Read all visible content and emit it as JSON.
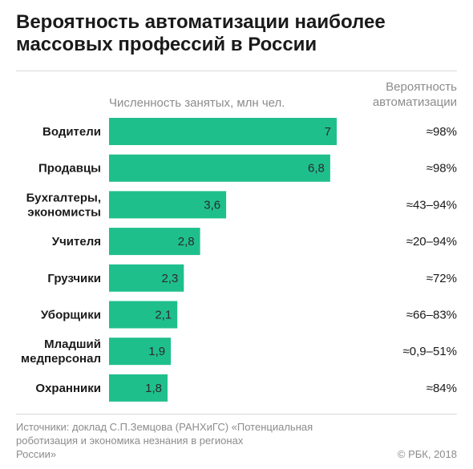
{
  "title": {
    "line1": "Вероятность автоматизации наиболее",
    "line2": "массовых профессий в России"
  },
  "headers": {
    "employed": "Численность занятых, млн чел.",
    "probability_line1": "Вероятность",
    "probability_line2": "автоматизации"
  },
  "source": {
    "line1": "Источники: доклад С.П.Земцова (РАНХиГС) «Потенциальная",
    "line2": "роботизация и экономика незнания в регионах",
    "line3": "России»"
  },
  "copyright": "© РБК, 2018",
  "colors": {
    "bar": "#1fbf8c",
    "label": "#1a1a1a",
    "value": "#2b2b2b"
  },
  "chart_data": {
    "type": "bar",
    "orientation": "horizontal",
    "categories": [
      [
        "Водители"
      ],
      [
        "Продавцы"
      ],
      [
        "Бухгалтеры,",
        "экономисты"
      ],
      [
        "Учителя"
      ],
      [
        "Грузчики"
      ],
      [
        "Уборщики"
      ],
      [
        "Младший",
        "медперсонал"
      ],
      [
        "Охранники"
      ]
    ],
    "series": [
      {
        "values": [
          7,
          6.8,
          3.6,
          2.8,
          2.3,
          2.1,
          1.9,
          1.8
        ],
        "value_labels": [
          "7",
          "6,8",
          "3,6",
          "2,8",
          "2,3",
          "2,1",
          "1,9",
          "1,8"
        ]
      }
    ],
    "automation_probability": [
      "≈98%",
      "≈98%",
      "≈43–94%",
      "≈20–94%",
      "≈72%",
      "≈66–83%",
      "≈0,9–51%",
      "≈84%"
    ],
    "xlim": [
      0,
      7
    ],
    "grid": false,
    "legend": "none"
  }
}
